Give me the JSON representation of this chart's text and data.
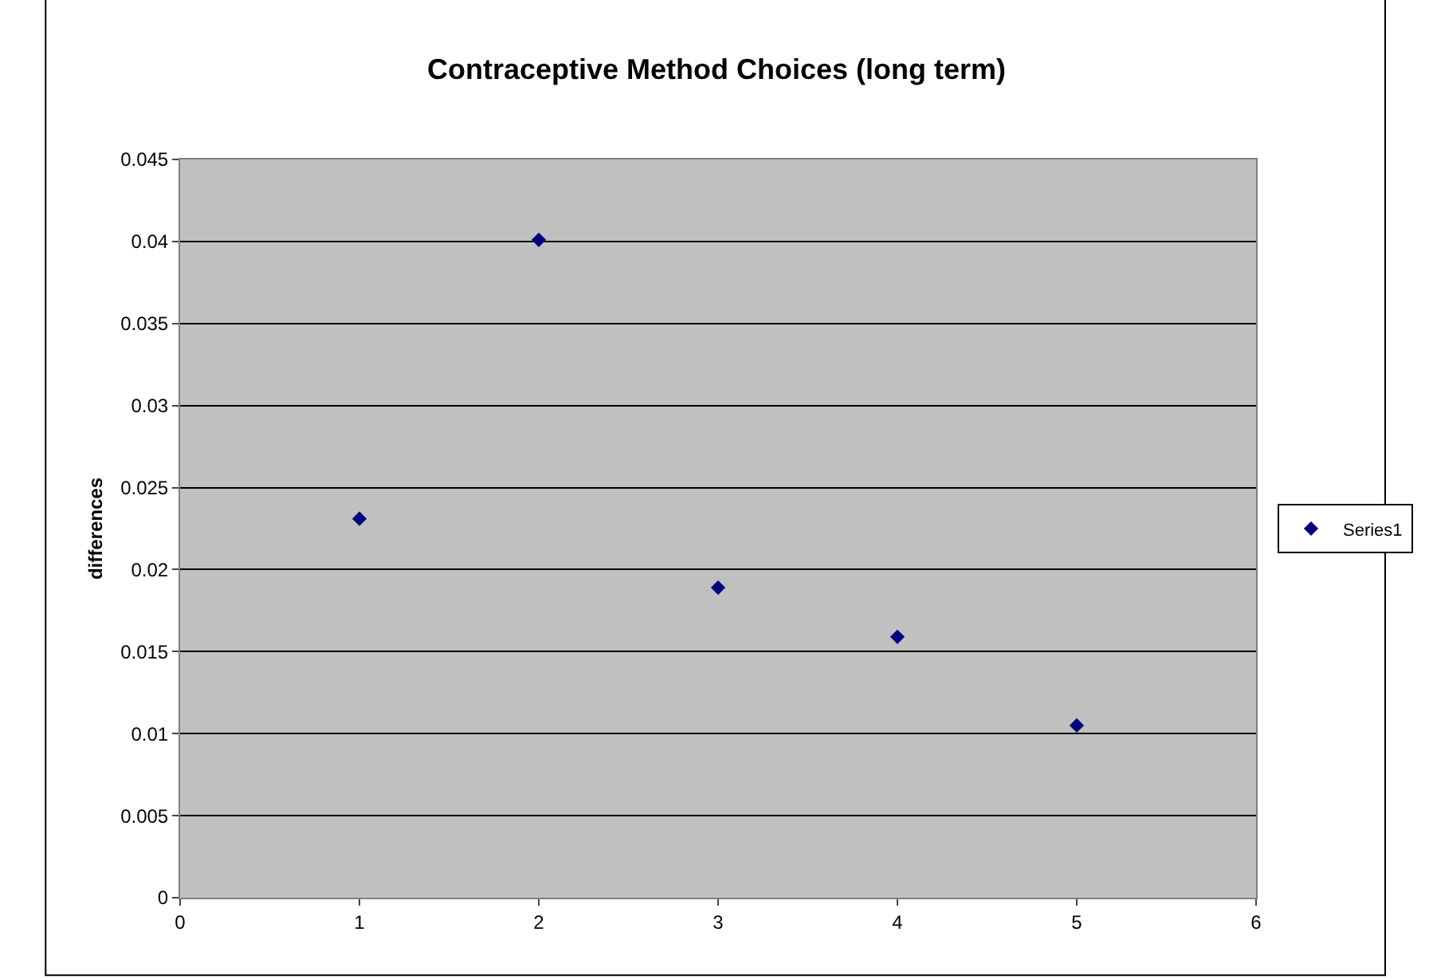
{
  "chart_data": {
    "type": "scatter",
    "title": "Contraceptive Method Choices (long term)",
    "ylabel": "differences",
    "x": [
      1,
      2,
      3,
      4,
      5
    ],
    "series": [
      {
        "name": "Series1",
        "color": "#000080",
        "values": [
          0.0231,
          0.0401,
          0.0189,
          0.0159,
          0.0105
        ]
      }
    ],
    "xlim": [
      0,
      6
    ],
    "xticks": [
      0,
      1,
      2,
      3,
      4,
      5,
      6
    ],
    "ylim": [
      0,
      0.045
    ],
    "yticks": [
      0,
      0.005,
      0.01,
      0.015,
      0.02,
      0.025,
      0.03,
      0.035,
      0.04,
      0.045
    ],
    "grid": "y",
    "legend": "right",
    "marker": "diamond"
  }
}
